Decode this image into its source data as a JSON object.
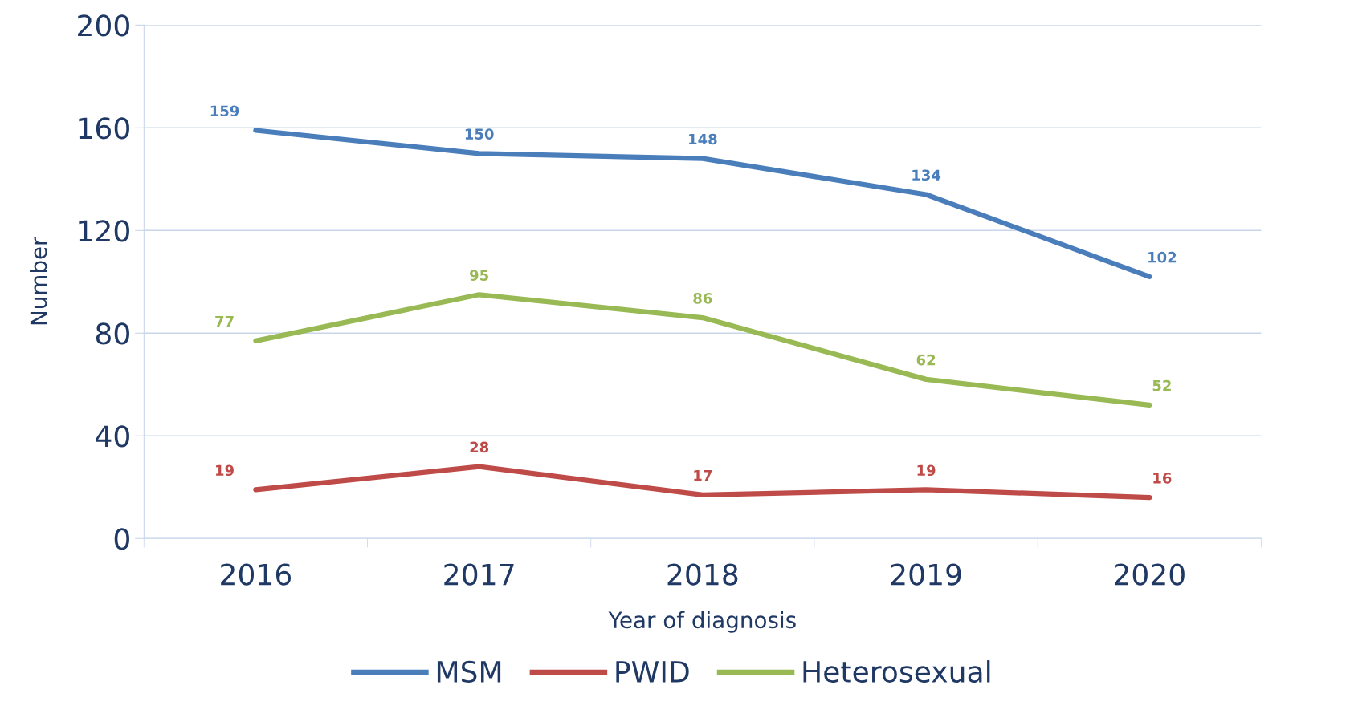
{
  "chart_data": {
    "type": "line",
    "xlabel": "Year of diagnosis",
    "ylabel": "Number",
    "categories": [
      "2016",
      "2017",
      "2018",
      "2019",
      "2020"
    ],
    "series": [
      {
        "name": "MSM",
        "color": "#4a7ebb",
        "values": [
          159,
          150,
          148,
          134,
          102
        ]
      },
      {
        "name": "PWID",
        "color": "#be4b48",
        "values": [
          19,
          28,
          17,
          19,
          16
        ]
      },
      {
        "name": "Heterosexual",
        "color": "#98b954",
        "values": [
          77,
          95,
          86,
          62,
          52
        ]
      }
    ],
    "ylim": [
      0,
      200
    ],
    "yticks": [
      0,
      40,
      80,
      120,
      160,
      200
    ],
    "grid": "y",
    "legend": "bottom",
    "data_labels": true,
    "line_style": "solid"
  }
}
